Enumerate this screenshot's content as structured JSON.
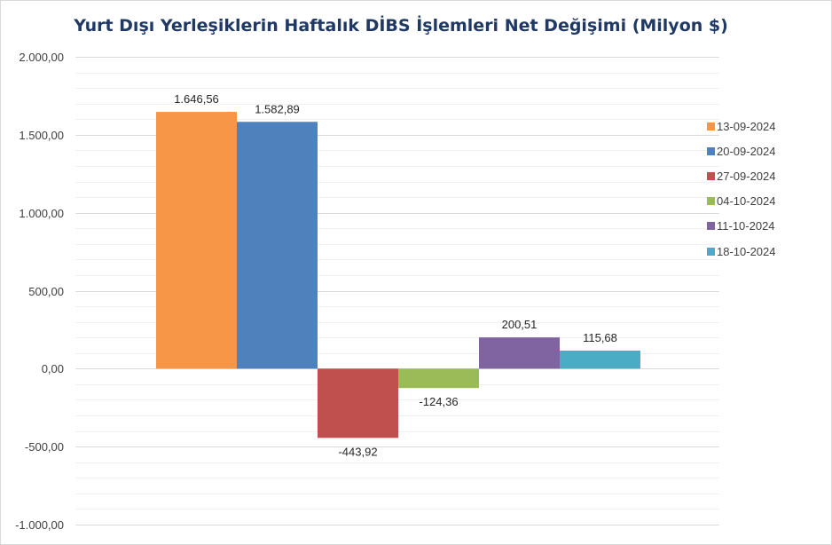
{
  "chart_data": {
    "type": "bar",
    "title": "Yurt Dışı Yerleşiklerin Haftalık DİBS İşlemleri Net Değişimi (Milyon $)",
    "xlabel": "",
    "ylabel": "",
    "ylim": [
      -1000,
      2000
    ],
    "ytick_step": 500,
    "minor_gridlines": true,
    "y_tick_labels": [
      "2.000,00",
      "1.500,00",
      "1.000,00",
      "500,00",
      "0,00",
      "-500,00",
      "-1.000,00"
    ],
    "legend_position": "right",
    "series": [
      {
        "name": "13-09-2024",
        "value": 1646.56,
        "label": "1.646,56",
        "color": "#f79646"
      },
      {
        "name": "20-09-2024",
        "value": 1582.89,
        "label": "1.582,89",
        "color": "#4f81bd"
      },
      {
        "name": "27-09-2024",
        "value": -443.92,
        "label": "-443,92",
        "color": "#c0504d"
      },
      {
        "name": "04-10-2024",
        "value": -124.36,
        "label": "-124,36",
        "color": "#9bbb59"
      },
      {
        "name": "11-10-2024",
        "value": 200.51,
        "label": "200,51",
        "color": "#8064a2"
      },
      {
        "name": "18-10-2024",
        "value": 115.68,
        "label": "115,68",
        "color": "#4bacc6"
      }
    ]
  }
}
